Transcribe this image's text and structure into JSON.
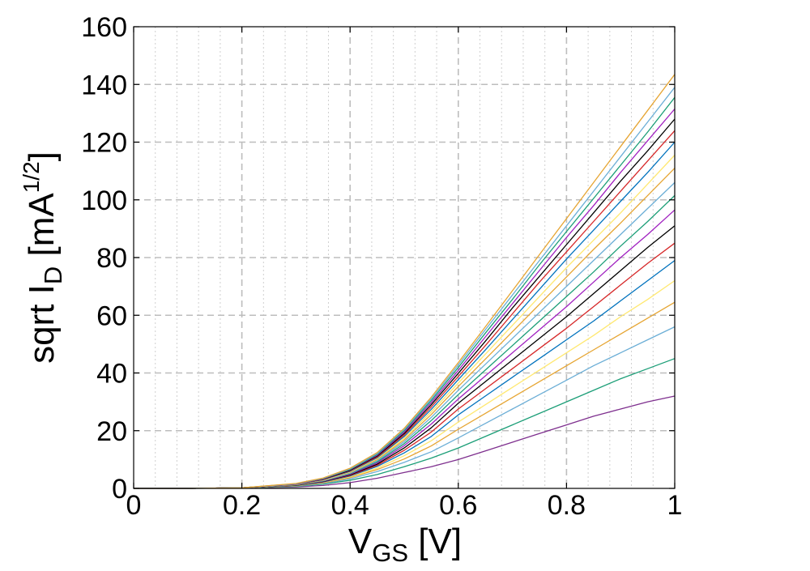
{
  "chart_data": {
    "type": "line",
    "xlabel": {
      "base": "V",
      "sub": "GS",
      "unit": " [V]"
    },
    "ylabel": {
      "pre": "sqrt I",
      "sub": "D",
      "mid": " [mA",
      "sup": "1/2",
      "post": "]"
    },
    "xlim": [
      0,
      1
    ],
    "ylim": [
      0,
      160
    ],
    "xticks": [
      0,
      0.2,
      0.4,
      0.6,
      0.8,
      1
    ],
    "xtick_labels": [
      "0",
      "0.2",
      "0.4",
      "0.6",
      "0.8",
      "1"
    ],
    "yticks": [
      0,
      20,
      40,
      60,
      80,
      100,
      120,
      140,
      160
    ],
    "ytick_labels": [
      "0",
      "20",
      "40",
      "60",
      "80",
      "100",
      "120",
      "140",
      "160"
    ],
    "x_minor_step": 0.04,
    "grid": true,
    "x": [
      0,
      0.1,
      0.2,
      0.3,
      0.35,
      0.4,
      0.45,
      0.5,
      0.55,
      0.6,
      0.65,
      0.7,
      0.75,
      0.8,
      0.85,
      0.9,
      0.95,
      1.0
    ],
    "series": [
      {
        "color": "#7e2f8e",
        "values": [
          0,
          0,
          0.1,
          0.5,
          1,
          2,
          3.5,
          5.5,
          7.5,
          10,
          13,
          16,
          19,
          22,
          25,
          27.5,
          30,
          32
        ]
      },
      {
        "color": "#1b9e77",
        "values": [
          0,
          0,
          0.1,
          0.7,
          1.5,
          2.8,
          4.8,
          7.5,
          10.5,
          14,
          18,
          22,
          26,
          30,
          34,
          38,
          41.5,
          45
        ]
      },
      {
        "color": "#6baed6",
        "values": [
          0,
          0,
          0.2,
          0.8,
          1.7,
          3.3,
          5.8,
          9,
          12.7,
          17.5,
          22.5,
          27.5,
          32.5,
          37.5,
          42.5,
          47,
          51.5,
          56
        ]
      },
      {
        "color": "#e6a532",
        "values": [
          0,
          0,
          0.2,
          0.9,
          1.9,
          3.7,
          6.5,
          10.2,
          14.7,
          20.5,
          26,
          31.5,
          37,
          42.5,
          48,
          53.5,
          59,
          64.5
        ]
      },
      {
        "color": "#ffe870",
        "values": [
          0,
          0,
          0.2,
          1,
          2.1,
          4,
          7,
          11.3,
          16.5,
          23,
          29,
          35,
          41,
          47,
          53,
          59.5,
          65.5,
          72
        ]
      },
      {
        "color": "#0072bd",
        "values": [
          0,
          0,
          0.2,
          1,
          2.2,
          4.3,
          7.6,
          12.3,
          18,
          25.5,
          32,
          38.5,
          45,
          51.5,
          58,
          65,
          72,
          79
        ]
      },
      {
        "color": "#d62728",
        "values": [
          0,
          0,
          0.2,
          1.1,
          2.3,
          4.5,
          8,
          13.2,
          19.5,
          27.5,
          34.5,
          41.5,
          48.5,
          55.5,
          63,
          70.5,
          78,
          85
        ]
      },
      {
        "color": "#000000",
        "values": [
          0,
          0,
          0.2,
          1.1,
          2.4,
          4.7,
          8.4,
          14,
          21,
          29.5,
          37,
          44.5,
          52,
          59.5,
          67.5,
          75.5,
          83.5,
          91
        ]
      },
      {
        "color": "#a020c0",
        "values": [
          0,
          0,
          0.2,
          1.2,
          2.5,
          4.9,
          8.8,
          14.8,
          22.3,
          31,
          39,
          47,
          55,
          63,
          71.5,
          80,
          88,
          96.5
        ]
      },
      {
        "color": "#1b9e77",
        "values": [
          0,
          0,
          0.2,
          1.2,
          2.6,
          5.1,
          9.2,
          15.5,
          23.5,
          32.5,
          41,
          49.5,
          58,
          66.5,
          75,
          84,
          92.5,
          101.5
        ]
      },
      {
        "color": "#6baed6",
        "values": [
          0,
          0,
          0.2,
          1.3,
          2.7,
          5.3,
          9.6,
          16.2,
          24.6,
          34,
          43,
          52,
          61,
          70,
          79,
          88,
          97,
          106
        ]
      },
      {
        "color": "#e6a532",
        "values": [
          0,
          0,
          0.2,
          1.3,
          2.8,
          5.5,
          10,
          16.8,
          25.6,
          35.3,
          44.8,
          54.3,
          63.8,
          73.3,
          82.8,
          92,
          101.5,
          111
        ]
      },
      {
        "color": "#ffe870",
        "values": [
          0,
          0,
          0.2,
          1.3,
          2.9,
          5.7,
          10.3,
          17.4,
          26.5,
          36.5,
          46.5,
          56.5,
          66.5,
          76.5,
          86,
          95.5,
          105.5,
          115.5
        ]
      },
      {
        "color": "#0072bd",
        "values": [
          0,
          0,
          0.2,
          1.4,
          3,
          5.9,
          10.6,
          18,
          27.4,
          37.7,
          48,
          58.5,
          69,
          79.5,
          89.5,
          99.5,
          109.5,
          120
        ]
      },
      {
        "color": "#d62728",
        "values": [
          0,
          0,
          0.2,
          1.4,
          3.1,
          6.1,
          10.9,
          18.5,
          28.2,
          38.8,
          49.5,
          60.5,
          71.5,
          82,
          92.5,
          103,
          113.5,
          124
        ]
      },
      {
        "color": "#000000",
        "values": [
          0,
          0,
          0.2,
          1.5,
          3.2,
          6.3,
          11.2,
          19,
          29,
          39.9,
          51,
          62.5,
          73.5,
          84.5,
          95.5,
          106.5,
          117,
          128
        ]
      },
      {
        "color": "#a020c0",
        "values": [
          0,
          0,
          0.2,
          1.5,
          3.3,
          6.5,
          11.5,
          19.5,
          29.7,
          40.9,
          52.5,
          64,
          75.5,
          87,
          98,
          109.5,
          120.5,
          131.5
        ]
      },
      {
        "color": "#1b9e77",
        "values": [
          0,
          0,
          0.2,
          1.6,
          3.4,
          6.6,
          11.8,
          20,
          30.4,
          41.9,
          53.8,
          65.5,
          77.5,
          89,
          100.5,
          112,
          123.5,
          135.5
        ]
      },
      {
        "color": "#6baed6",
        "values": [
          0,
          0,
          0.2,
          1.6,
          3.5,
          6.8,
          12.1,
          20.4,
          31,
          42.8,
          55,
          67,
          79,
          91,
          103,
          115,
          127,
          139
        ]
      },
      {
        "color": "#e6a532",
        "values": [
          0,
          0,
          0.2,
          1.7,
          3.6,
          7,
          12.4,
          20.8,
          31.6,
          43.6,
          56,
          68.5,
          81,
          93.5,
          106,
          118.5,
          131,
          143.5
        ]
      }
    ]
  }
}
